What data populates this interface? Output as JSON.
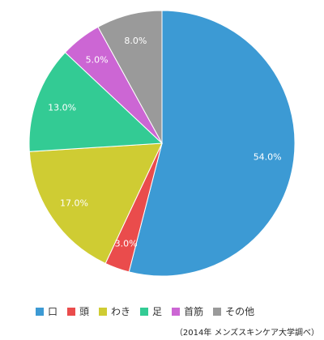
{
  "chart_data": {
    "type": "pie",
    "start_angle_deg": 0,
    "direction": "clockwise",
    "slices": [
      {
        "label": "口",
        "value": 54.0,
        "display": "54.0%",
        "color": "#3c9ad4"
      },
      {
        "label": "頭",
        "value": 3.0,
        "display": "3.0%",
        "color": "#ea4c4c"
      },
      {
        "label": "わき",
        "value": 17.0,
        "display": "17.0%",
        "color": "#cfcc33"
      },
      {
        "label": "足",
        "value": 13.0,
        "display": "13.0%",
        "color": "#33cb94"
      },
      {
        "label": "首筋",
        "value": 5.0,
        "display": "5.0%",
        "color": "#cc66d4"
      },
      {
        "label": "その他",
        "value": 8.0,
        "display": "8.0%",
        "color": "#9a9a9a"
      }
    ],
    "legend_position": "bottom"
  },
  "source_note": "（2014年 メンズスキンケア大学調べ）"
}
